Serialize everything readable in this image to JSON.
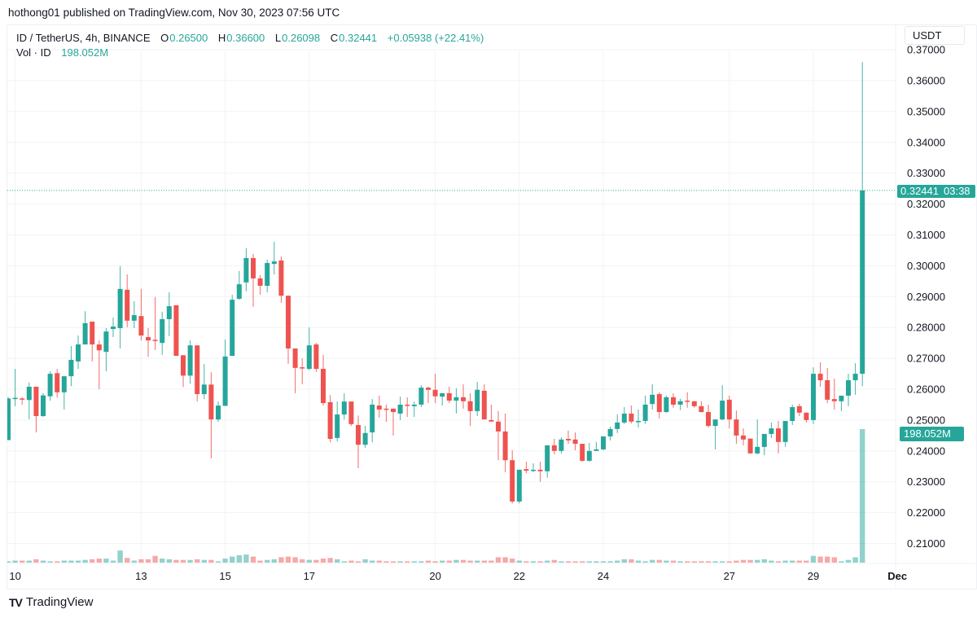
{
  "publish_line": "hothong01 published on TradingView.com, Nov 30, 2023 07:56 UTC",
  "legend": {
    "symbol": "ID / TetherUS, 4h, BINANCE",
    "o_label": "O",
    "o": "0.26500",
    "h_label": "H",
    "h": "0.36600",
    "l_label": "L",
    "l": "0.26098",
    "c_label": "C",
    "c": "0.32441",
    "change": "+0.05938 (+22.41%)",
    "vol_label": "Vol · ID",
    "vol": "198.052M"
  },
  "currency_button": "USDT",
  "last_price_label": {
    "price": "0.32441",
    "countdown": "03:38"
  },
  "volume_label": "198.052M",
  "brand": "TradingView",
  "colors": {
    "up": "#26a69a",
    "down": "#ef5350",
    "grid": "#f1f3f6"
  },
  "chart_data": {
    "type": "candlestick",
    "interval": "4h",
    "first_candle": "2023-11-09 20:00",
    "last_candle": "2023-11-30 04:00",
    "ylim": [
      0.2,
      0.37
    ],
    "y_tick_labels": [
      "0.21000",
      "0.22000",
      "0.23000",
      "0.24000",
      "0.25000",
      "0.26000",
      "0.27000",
      "0.28000",
      "0.29000",
      "0.30000",
      "0.31000",
      "0.32000",
      "0.33000",
      "0.34000",
      "0.35000",
      "0.36000",
      "0.37000"
    ],
    "x_ticks": [
      {
        "label": "10",
        "date": "2023-11-10"
      },
      {
        "label": "13",
        "date": "2023-11-13"
      },
      {
        "label": "15",
        "date": "2023-11-15"
      },
      {
        "label": "17",
        "date": "2023-11-17"
      },
      {
        "label": "20",
        "date": "2023-11-20"
      },
      {
        "label": "22",
        "date": "2023-11-22"
      },
      {
        "label": "24",
        "date": "2023-11-24"
      },
      {
        "label": "27",
        "date": "2023-11-27"
      },
      {
        "label": "29",
        "date": "2023-11-29"
      },
      {
        "label": "Dec",
        "date": "2023-12-01"
      }
    ],
    "ohlc_fields": [
      "open",
      "high",
      "low",
      "close"
    ],
    "ohlc": [
      [
        0.2435,
        0.2575,
        0.2435,
        0.257
      ],
      [
        0.257,
        0.2666,
        0.2545,
        0.2572
      ],
      [
        0.257,
        0.2575,
        0.255,
        0.2568
      ],
      [
        0.2565,
        0.2622,
        0.2503,
        0.2608
      ],
      [
        0.2608,
        0.2608,
        0.246,
        0.2513
      ],
      [
        0.2513,
        0.2587,
        0.251,
        0.258
      ],
      [
        0.2577,
        0.2658,
        0.2563,
        0.265
      ],
      [
        0.2652,
        0.2666,
        0.2573,
        0.259
      ],
      [
        0.259,
        0.2642,
        0.2534,
        0.2642
      ],
      [
        0.2642,
        0.274,
        0.261,
        0.2695
      ],
      [
        0.269,
        0.2774,
        0.2666,
        0.2745
      ],
      [
        0.2745,
        0.2853,
        0.2745,
        0.2814
      ],
      [
        0.2819,
        0.2819,
        0.269,
        0.2745
      ],
      [
        0.2745,
        0.2758,
        0.26,
        0.2726
      ],
      [
        0.2721,
        0.2798,
        0.2658,
        0.2787
      ],
      [
        0.2795,
        0.2832,
        0.2769,
        0.2803
      ],
      [
        0.2798,
        0.2999,
        0.2732,
        0.2925
      ],
      [
        0.2922,
        0.2972,
        0.2801,
        0.2822
      ],
      [
        0.2822,
        0.2885,
        0.2798,
        0.284
      ],
      [
        0.2837,
        0.2925,
        0.2758,
        0.2774
      ],
      [
        0.2769,
        0.2798,
        0.2705,
        0.2758
      ],
      [
        0.276,
        0.2899,
        0.2727,
        0.2758
      ],
      [
        0.275,
        0.2851,
        0.2711,
        0.2827
      ],
      [
        0.2827,
        0.2914,
        0.2772,
        0.2869
      ],
      [
        0.2872,
        0.2872,
        0.2708,
        0.2708
      ],
      [
        0.271,
        0.271,
        0.2607,
        0.2644
      ],
      [
        0.2644,
        0.2758,
        0.2618,
        0.2742
      ],
      [
        0.2742,
        0.2742,
        0.256,
        0.2584
      ],
      [
        0.2584,
        0.2682,
        0.2568,
        0.2615
      ],
      [
        0.2615,
        0.2655,
        0.2376,
        0.2502
      ],
      [
        0.2502,
        0.256,
        0.2494,
        0.2547
      ],
      [
        0.2546,
        0.2761,
        0.2546,
        0.2706
      ],
      [
        0.2708,
        0.2906,
        0.2708,
        0.289
      ],
      [
        0.2893,
        0.2983,
        0.289,
        0.294
      ],
      [
        0.2946,
        0.3057,
        0.2917,
        0.3025
      ],
      [
        0.3025,
        0.3038,
        0.2867,
        0.2959
      ],
      [
        0.2959,
        0.297,
        0.2906,
        0.2935
      ],
      [
        0.2935,
        0.302,
        0.2914,
        0.3009
      ],
      [
        0.3006,
        0.3078,
        0.2972,
        0.3014
      ],
      [
        0.3017,
        0.303,
        0.288,
        0.2903
      ],
      [
        0.2903,
        0.2903,
        0.2682,
        0.2732
      ],
      [
        0.2732,
        0.2732,
        0.2587,
        0.2669
      ],
      [
        0.2671,
        0.27,
        0.2616,
        0.2669
      ],
      [
        0.2666,
        0.28,
        0.2661,
        0.2742
      ],
      [
        0.2745,
        0.275,
        0.2656,
        0.2666
      ],
      [
        0.2666,
        0.2711,
        0.2547,
        0.2555
      ],
      [
        0.2558,
        0.2581,
        0.2428,
        0.2439
      ],
      [
        0.2442,
        0.256,
        0.2431,
        0.2518
      ],
      [
        0.2518,
        0.2587,
        0.2502,
        0.256
      ],
      [
        0.256,
        0.256,
        0.2481,
        0.2487
      ],
      [
        0.2484,
        0.2515,
        0.2344,
        0.242
      ],
      [
        0.242,
        0.2481,
        0.241,
        0.2458
      ],
      [
        0.246,
        0.2568,
        0.2428,
        0.255
      ],
      [
        0.2547,
        0.2579,
        0.2508,
        0.2534
      ],
      [
        0.2537,
        0.255,
        0.2494,
        0.2534
      ],
      [
        0.2537,
        0.2537,
        0.245,
        0.2526
      ],
      [
        0.2521,
        0.2576,
        0.25,
        0.255
      ],
      [
        0.255,
        0.2574,
        0.251,
        0.2548
      ],
      [
        0.2545,
        0.256,
        0.251,
        0.255
      ],
      [
        0.255,
        0.2613,
        0.2542,
        0.2605
      ],
      [
        0.2605,
        0.2608,
        0.2555,
        0.2598
      ],
      [
        0.2598,
        0.265,
        0.2555,
        0.2577
      ],
      [
        0.2576,
        0.2587,
        0.2547,
        0.2587
      ],
      [
        0.2587,
        0.2608,
        0.2555,
        0.2563
      ],
      [
        0.2563,
        0.2603,
        0.2521,
        0.2574
      ],
      [
        0.2574,
        0.2616,
        0.2537,
        0.2561
      ],
      [
        0.2561,
        0.2587,
        0.2481,
        0.2529
      ],
      [
        0.2529,
        0.2624,
        0.2513,
        0.2598
      ],
      [
        0.2595,
        0.2616,
        0.2502,
        0.2502
      ],
      [
        0.25,
        0.255,
        0.2495,
        0.2495
      ],
      [
        0.2495,
        0.2529,
        0.237,
        0.2463
      ],
      [
        0.2463,
        0.2521,
        0.2331,
        0.237
      ],
      [
        0.237,
        0.2402,
        0.223,
        0.2236
      ],
      [
        0.2236,
        0.2339,
        0.223,
        0.2339
      ],
      [
        0.2341,
        0.2365,
        0.2328,
        0.2336
      ],
      [
        0.2336,
        0.236,
        0.2331,
        0.2339
      ],
      [
        0.2339,
        0.2365,
        0.23,
        0.2334
      ],
      [
        0.2334,
        0.2418,
        0.2313,
        0.2418
      ],
      [
        0.2418,
        0.2439,
        0.2389,
        0.24
      ],
      [
        0.24,
        0.2444,
        0.2392,
        0.2437
      ],
      [
        0.2439,
        0.2466,
        0.2423,
        0.2434
      ],
      [
        0.2437,
        0.246,
        0.2402,
        0.2423
      ],
      [
        0.2423,
        0.2423,
        0.2365,
        0.2368
      ],
      [
        0.2368,
        0.2426,
        0.2365,
        0.24
      ],
      [
        0.24,
        0.2429,
        0.24,
        0.2405
      ],
      [
        0.2405,
        0.2447,
        0.2402,
        0.2447
      ],
      [
        0.2447,
        0.2479,
        0.2434,
        0.2471
      ],
      [
        0.2471,
        0.2518,
        0.2458,
        0.2492
      ],
      [
        0.2492,
        0.2542,
        0.2487,
        0.2521
      ],
      [
        0.2521,
        0.2547,
        0.2489,
        0.2495
      ],
      [
        0.2495,
        0.2534,
        0.2476,
        0.2497
      ],
      [
        0.2497,
        0.2579,
        0.2487,
        0.255
      ],
      [
        0.2552,
        0.2616,
        0.2534,
        0.2582
      ],
      [
        0.2584,
        0.259,
        0.2505,
        0.2526
      ],
      [
        0.2526,
        0.2579,
        0.2524,
        0.2574
      ],
      [
        0.2574,
        0.2587,
        0.254,
        0.255
      ],
      [
        0.255,
        0.2569,
        0.2532,
        0.2561
      ],
      [
        0.2563,
        0.259,
        0.254,
        0.2561
      ],
      [
        0.2561,
        0.2561,
        0.254,
        0.2545
      ],
      [
        0.2545,
        0.2561,
        0.2524,
        0.2526
      ],
      [
        0.2526,
        0.255,
        0.2476,
        0.2481
      ],
      [
        0.2481,
        0.2502,
        0.2405,
        0.2502
      ],
      [
        0.2502,
        0.2613,
        0.25,
        0.2563
      ],
      [
        0.2566,
        0.2579,
        0.2473,
        0.2502
      ],
      [
        0.2502,
        0.2531,
        0.2423,
        0.245
      ],
      [
        0.245,
        0.2473,
        0.2418,
        0.2437
      ],
      [
        0.244,
        0.244,
        0.2392,
        0.2392
      ],
      [
        0.2392,
        0.2502,
        0.2389,
        0.2413
      ],
      [
        0.2413,
        0.2455,
        0.2386,
        0.2455
      ],
      [
        0.2455,
        0.2492,
        0.2442,
        0.2473
      ],
      [
        0.2473,
        0.2497,
        0.2392,
        0.2429
      ],
      [
        0.2429,
        0.2497,
        0.2413,
        0.2497
      ],
      [
        0.2497,
        0.255,
        0.2484,
        0.2542
      ],
      [
        0.2545,
        0.2553,
        0.2513,
        0.2524
      ],
      [
        0.2524,
        0.2524,
        0.2492,
        0.25
      ],
      [
        0.25,
        0.2671,
        0.2487,
        0.265
      ],
      [
        0.265,
        0.2687,
        0.2608,
        0.2629
      ],
      [
        0.2629,
        0.2669,
        0.2555,
        0.2566
      ],
      [
        0.2568,
        0.2634,
        0.2534,
        0.2561
      ],
      [
        0.2561,
        0.2579,
        0.2529,
        0.2579
      ],
      [
        0.2579,
        0.265,
        0.2545,
        0.2629
      ],
      [
        0.2629,
        0.2684,
        0.2582,
        0.265
      ],
      [
        0.265,
        0.366,
        0.26098,
        0.32441
      ]
    ],
    "volume_unit": "M",
    "volume": [
      2,
      3,
      3,
      3,
      5,
      3,
      2,
      2,
      3,
      3,
      3,
      4,
      5,
      6,
      6,
      3,
      18,
      7,
      3,
      5,
      5,
      10,
      6,
      5,
      4,
      4,
      4,
      5,
      4,
      4,
      2,
      6,
      9,
      11,
      12,
      9,
      3,
      4,
      5,
      8,
      9,
      8,
      5,
      4,
      4,
      6,
      7,
      5,
      2,
      3,
      2,
      5,
      3,
      3,
      2,
      2,
      2,
      2,
      2,
      2,
      3,
      2,
      3,
      3,
      4,
      4,
      3,
      3,
      3,
      3,
      8,
      8,
      6,
      3,
      2,
      2,
      2,
      3,
      4,
      2,
      2,
      2,
      2,
      2,
      2,
      2,
      2,
      3,
      5,
      5,
      3,
      2,
      4,
      4,
      3,
      3,
      2,
      2,
      2,
      2,
      2,
      2,
      2,
      2,
      3,
      4,
      4,
      4,
      5,
      3,
      2,
      3,
      3,
      3,
      3,
      10,
      9,
      9,
      8,
      2,
      4,
      8,
      198.052
    ],
    "last_price": 0.32441
  }
}
